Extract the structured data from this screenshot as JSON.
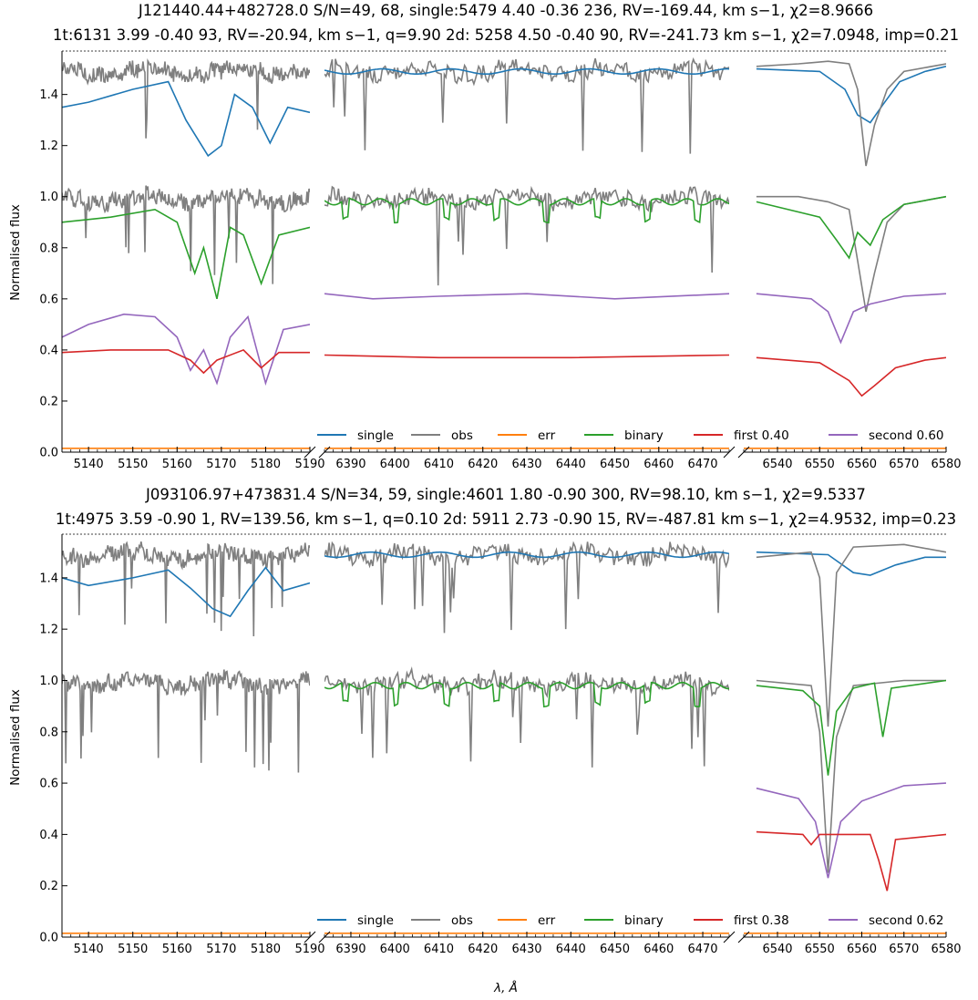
{
  "figure": {
    "xlabel": "λ, Å",
    "ylabel": "Normalised flux"
  },
  "colors": {
    "single": "#1f77b4",
    "obs": "#7f7f7f",
    "err": "#ff7f0e",
    "binary": "#2ca02c",
    "first": "#d62728",
    "second": "#9467bd"
  },
  "chart_data": [
    {
      "type": "line",
      "title_line1": "J121440.44+482728.0 S/N=49, 68, single:5479 4.40 -0.36 236, RV=-169.44, km s−1, χ2=8.9666",
      "title_line2": "1t:6131 3.99 -0.40 93, RV=-20.94, km s−1, q=9.90 2d: 5258 4.50 -0.40 90, RV=-241.73 km s−1, χ2=7.0948, imp=0.21",
      "ylim": [
        0,
        1.57
      ],
      "yticks": [
        0.0,
        0.2,
        0.4,
        0.6,
        0.8,
        1.0,
        1.2,
        1.4
      ],
      "segments": [
        {
          "xlim": [
            5134,
            5190
          ],
          "xticks": [
            5140,
            5150,
            5160,
            5170,
            5180,
            5190
          ]
        },
        {
          "xlim": [
            6384,
            6476
          ],
          "xticks": [
            6390,
            6400,
            6410,
            6420,
            6430,
            6440,
            6450,
            6460,
            6470
          ]
        },
        {
          "xlim": [
            6532,
            6580
          ],
          "xticks": [
            6540,
            6550,
            6560,
            6570,
            6580
          ]
        }
      ],
      "legend": {
        "position": "lower-right",
        "entries": [
          "single",
          "obs",
          "err",
          "binary",
          "first 0.40",
          "second 0.60"
        ]
      },
      "series": [
        {
          "key": "single",
          "offset": 0.5,
          "lines": [
            [
              [
                5134,
                0.85
              ],
              [
                5140,
                0.87
              ],
              [
                5150,
                0.92
              ],
              [
                5158,
                0.95
              ],
              [
                5162,
                0.8
              ],
              [
                5167,
                0.66
              ],
              [
                5170,
                0.7
              ],
              [
                5173,
                0.9
              ],
              [
                5177,
                0.85
              ],
              [
                5181,
                0.71
              ],
              [
                5185,
                0.85
              ],
              [
                5190,
                0.83
              ]
            ],
            [
              [
                6535,
                1.0
              ],
              [
                6550,
                0.99
              ],
              [
                6556,
                0.92
              ],
              [
                6559,
                0.82
              ],
              [
                6562,
                0.79
              ],
              [
                6565,
                0.86
              ],
              [
                6569,
                0.95
              ],
              [
                6575,
                0.99
              ],
              [
                6580,
                1.01
              ]
            ]
          ]
        },
        {
          "key": "obs",
          "offset": 0.5,
          "lines": [
            [
              [
                6535,
                1.01
              ],
              [
                6545,
                1.02
              ],
              [
                6552,
                1.03
              ],
              [
                6557,
                1.02
              ],
              [
                6559,
                0.92
              ],
              [
                6561,
                0.62
              ],
              [
                6563,
                0.78
              ],
              [
                6566,
                0.92
              ],
              [
                6570,
                0.99
              ],
              [
                6580,
                1.02
              ]
            ]
          ]
        },
        {
          "key": "obs",
          "offset": 0.0,
          "lines": [
            [
              [
                6535,
                1.0
              ],
              [
                6545,
                1.0
              ],
              [
                6552,
                0.98
              ],
              [
                6557,
                0.95
              ],
              [
                6559,
                0.75
              ],
              [
                6561,
                0.55
              ],
              [
                6563,
                0.7
              ],
              [
                6566,
                0.9
              ],
              [
                6570,
                0.97
              ],
              [
                6580,
                1.0
              ]
            ]
          ]
        },
        {
          "key": "binary",
          "offset": 0.0,
          "lines": [
            [
              [
                5134,
                0.9
              ],
              [
                5145,
                0.92
              ],
              [
                5155,
                0.95
              ],
              [
                5160,
                0.9
              ],
              [
                5164,
                0.7
              ],
              [
                5166,
                0.8
              ],
              [
                5169,
                0.6
              ],
              [
                5172,
                0.88
              ],
              [
                5175,
                0.85
              ],
              [
                5179,
                0.66
              ],
              [
                5183,
                0.85
              ],
              [
                5190,
                0.88
              ]
            ],
            [
              [
                6535,
                0.98
              ],
              [
                6550,
                0.92
              ],
              [
                6554,
                0.83
              ],
              [
                6557,
                0.76
              ],
              [
                6559,
                0.86
              ],
              [
                6562,
                0.81
              ],
              [
                6565,
                0.91
              ],
              [
                6570,
                0.97
              ],
              [
                6580,
                1.0
              ]
            ]
          ]
        },
        {
          "key": "second",
          "offset": 0.0,
          "lines": [
            [
              [
                5134,
                0.45
              ],
              [
                5140,
                0.5
              ],
              [
                5148,
                0.54
              ],
              [
                5155,
                0.53
              ],
              [
                5160,
                0.45
              ],
              [
                5163,
                0.32
              ],
              [
                5166,
                0.4
              ],
              [
                5169,
                0.27
              ],
              [
                5172,
                0.45
              ],
              [
                5176,
                0.53
              ],
              [
                5180,
                0.27
              ],
              [
                5184,
                0.48
              ],
              [
                5190,
                0.5
              ]
            ],
            [
              [
                6384,
                0.62
              ],
              [
                6395,
                0.6
              ],
              [
                6410,
                0.61
              ],
              [
                6430,
                0.62
              ],
              [
                6450,
                0.6
              ],
              [
                6476,
                0.62
              ]
            ],
            [
              [
                6535,
                0.62
              ],
              [
                6548,
                0.6
              ],
              [
                6552,
                0.55
              ],
              [
                6555,
                0.43
              ],
              [
                6558,
                0.55
              ],
              [
                6562,
                0.58
              ],
              [
                6570,
                0.61
              ],
              [
                6580,
                0.62
              ]
            ]
          ]
        },
        {
          "key": "first",
          "offset": 0.0,
          "lines": [
            [
              [
                5134,
                0.39
              ],
              [
                5145,
                0.4
              ],
              [
                5158,
                0.4
              ],
              [
                5163,
                0.36
              ],
              [
                5166,
                0.31
              ],
              [
                5169,
                0.36
              ],
              [
                5175,
                0.4
              ],
              [
                5179,
                0.33
              ],
              [
                5183,
                0.39
              ],
              [
                5190,
                0.39
              ]
            ],
            [
              [
                6384,
                0.38
              ],
              [
                6410,
                0.37
              ],
              [
                6440,
                0.37
              ],
              [
                6476,
                0.38
              ]
            ],
            [
              [
                6535,
                0.37
              ],
              [
                6550,
                0.35
              ],
              [
                6557,
                0.28
              ],
              [
                6560,
                0.22
              ],
              [
                6563,
                0.26
              ],
              [
                6568,
                0.33
              ],
              [
                6575,
                0.36
              ],
              [
                6580,
                0.37
              ]
            ]
          ]
        }
      ]
    },
    {
      "type": "line",
      "title_line1": "J093106.97+473831.4 S/N=34, 59, single:4601 1.80 -0.90 300, RV=98.10, km s−1, χ2=9.5337",
      "title_line2": "1t:4975 3.59 -0.90 1, RV=139.56, km s−1, q=0.10 2d: 5911 2.73 -0.90 15, RV=-487.81 km s−1, χ2=4.9532, imp=0.23",
      "ylim": [
        0,
        1.57
      ],
      "yticks": [
        0.0,
        0.2,
        0.4,
        0.6,
        0.8,
        1.0,
        1.2,
        1.4
      ],
      "segments": [
        {
          "xlim": [
            5134,
            5190
          ],
          "xticks": [
            5140,
            5150,
            5160,
            5170,
            5180,
            5190
          ]
        },
        {
          "xlim": [
            6384,
            6476
          ],
          "xticks": [
            6390,
            6400,
            6410,
            6420,
            6430,
            6440,
            6450,
            6460,
            6470
          ]
        },
        {
          "xlim": [
            6532,
            6580
          ],
          "xticks": [
            6540,
            6550,
            6560,
            6570,
            6580
          ]
        }
      ],
      "legend": {
        "position": "lower-right",
        "entries": [
          "single",
          "obs",
          "err",
          "binary",
          "first 0.38",
          "second 0.62"
        ]
      },
      "series": [
        {
          "key": "single",
          "offset": 0.5,
          "lines": [
            [
              [
                5134,
                0.9
              ],
              [
                5140,
                0.87
              ],
              [
                5150,
                0.9
              ],
              [
                5158,
                0.93
              ],
              [
                5163,
                0.86
              ],
              [
                5168,
                0.78
              ],
              [
                5172,
                0.75
              ],
              [
                5176,
                0.85
              ],
              [
                5180,
                0.94
              ],
              [
                5184,
                0.85
              ],
              [
                5190,
                0.88
              ]
            ],
            [
              [
                6535,
                1.0
              ],
              [
                6552,
                0.99
              ],
              [
                6558,
                0.92
              ],
              [
                6562,
                0.91
              ],
              [
                6568,
                0.95
              ],
              [
                6575,
                0.98
              ],
              [
                6580,
                0.98
              ]
            ]
          ]
        },
        {
          "key": "obs",
          "offset": 0.5,
          "lines": [
            [
              [
                6535,
                0.98
              ],
              [
                6548,
                1.0
              ],
              [
                6550,
                0.9
              ],
              [
                6552,
                0.32
              ],
              [
                6554,
                0.92
              ],
              [
                6558,
                1.02
              ],
              [
                6570,
                1.03
              ],
              [
                6580,
                1.0
              ]
            ]
          ]
        },
        {
          "key": "obs",
          "offset": 0.0,
          "lines": [
            [
              [
                6535,
                1.0
              ],
              [
                6548,
                0.98
              ],
              [
                6550,
                0.8
              ],
              [
                6552,
                0.25
              ],
              [
                6554,
                0.78
              ],
              [
                6558,
                0.98
              ],
              [
                6570,
                1.0
              ],
              [
                6580,
                1.0
              ]
            ]
          ]
        },
        {
          "key": "binary",
          "offset": 0.0,
          "lines": [
            [
              [
                6535,
                0.98
              ],
              [
                6546,
                0.96
              ],
              [
                6550,
                0.9
              ],
              [
                6552,
                0.63
              ],
              [
                6554,
                0.88
              ],
              [
                6558,
                0.97
              ],
              [
                6563,
                0.99
              ],
              [
                6565,
                0.78
              ],
              [
                6567,
                0.97
              ],
              [
                6580,
                1.0
              ]
            ]
          ]
        },
        {
          "key": "second",
          "offset": 0.0,
          "lines": [
            [
              [
                6535,
                0.58
              ],
              [
                6545,
                0.54
              ],
              [
                6549,
                0.45
              ],
              [
                6552,
                0.23
              ],
              [
                6555,
                0.45
              ],
              [
                6560,
                0.53
              ],
              [
                6570,
                0.59
              ],
              [
                6580,
                0.6
              ]
            ]
          ]
        },
        {
          "key": "first",
          "offset": 0.0,
          "lines": [
            [
              [
                6535,
                0.41
              ],
              [
                6546,
                0.4
              ],
              [
                6548,
                0.36
              ],
              [
                6550,
                0.4
              ],
              [
                6562,
                0.4
              ],
              [
                6564,
                0.3
              ],
              [
                6566,
                0.18
              ],
              [
                6568,
                0.38
              ],
              [
                6580,
                0.4
              ]
            ]
          ]
        }
      ]
    }
  ]
}
